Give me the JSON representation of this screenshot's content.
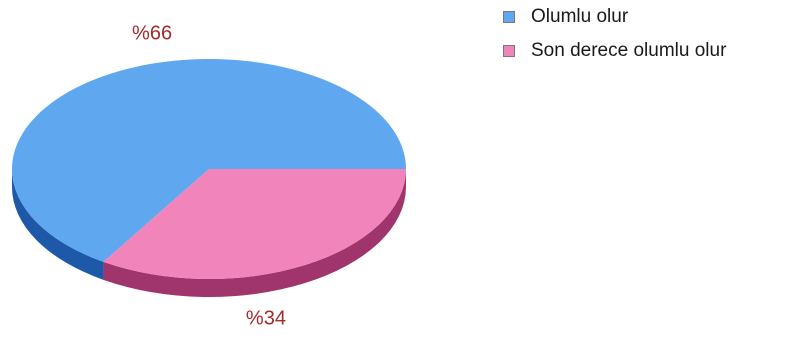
{
  "chart_data": {
    "type": "pie",
    "style": "3d",
    "title": "",
    "categories": [
      "Olumlu olur",
      "Son derece olumlu olur"
    ],
    "values": [
      66,
      34
    ],
    "data_labels": [
      "%66",
      "%34"
    ],
    "legend_placement": "top-right",
    "colors": {
      "top": [
        "#5fa8ef",
        "#f184bb"
      ],
      "side": [
        "#1e58a8",
        "#a0356e"
      ],
      "label": "#a52a2a"
    }
  }
}
